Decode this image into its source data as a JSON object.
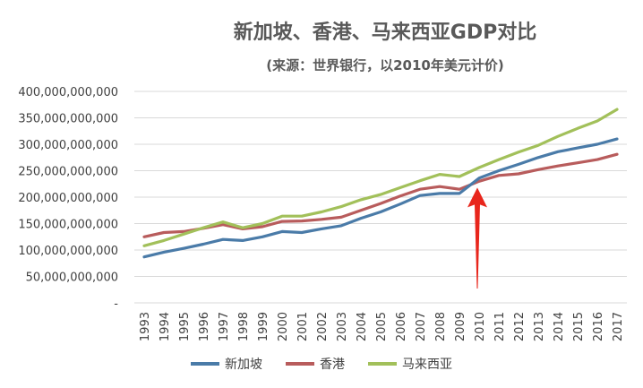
{
  "chart_data": {
    "type": "line",
    "title": "新加坡、香港、马来西亚GDP对比",
    "subtitle": "(来源：世界银行，以2010年美元计价)",
    "categories": [
      "1993",
      "1994",
      "1995",
      "1996",
      "1997",
      "1998",
      "1999",
      "2000",
      "2001",
      "2002",
      "2003",
      "2004",
      "2005",
      "2006",
      "2007",
      "2008",
      "2009",
      "2010",
      "2011",
      "2012",
      "2013",
      "2014",
      "2015",
      "2016",
      "2017"
    ],
    "series": [
      {
        "name": "新加坡",
        "color": "#4a7ba8",
        "values": [
          87,
          96,
          103,
          111,
          120,
          118,
          125,
          135,
          133,
          140,
          146,
          160,
          172,
          187,
          203,
          207,
          207,
          236,
          250,
          262,
          275,
          286,
          293,
          300,
          310
        ]
      },
      {
        "name": "香港",
        "color": "#b85c5c",
        "values": [
          125,
          133,
          135,
          141,
          148,
          140,
          144,
          154,
          155,
          158,
          162,
          175,
          188,
          202,
          215,
          220,
          215,
          230,
          241,
          244,
          252,
          259,
          265,
          271,
          281
        ]
      },
      {
        "name": "马来西亚",
        "color": "#a2c05a",
        "values": [
          108,
          118,
          130,
          142,
          153,
          142,
          150,
          164,
          164,
          172,
          182,
          195,
          205,
          218,
          231,
          243,
          239,
          256,
          271,
          285,
          298,
          315,
          330,
          344,
          366
        ]
      }
    ],
    "value_unit_multiplier": 1000000000,
    "ylim": [
      0,
      400
    ],
    "y_ticks": [
      "-",
      "50,000,000,000",
      "100,000,000,000",
      "150,000,000,000",
      "200,000,000,000",
      "250,000,000,000",
      "300,000,000,000",
      "350,000,000,000",
      "400,000,000,000"
    ],
    "grid": true,
    "legend_position": "bottom",
    "annotation": {
      "type": "arrow",
      "color": "#e8261c",
      "points_to": "2010"
    }
  }
}
